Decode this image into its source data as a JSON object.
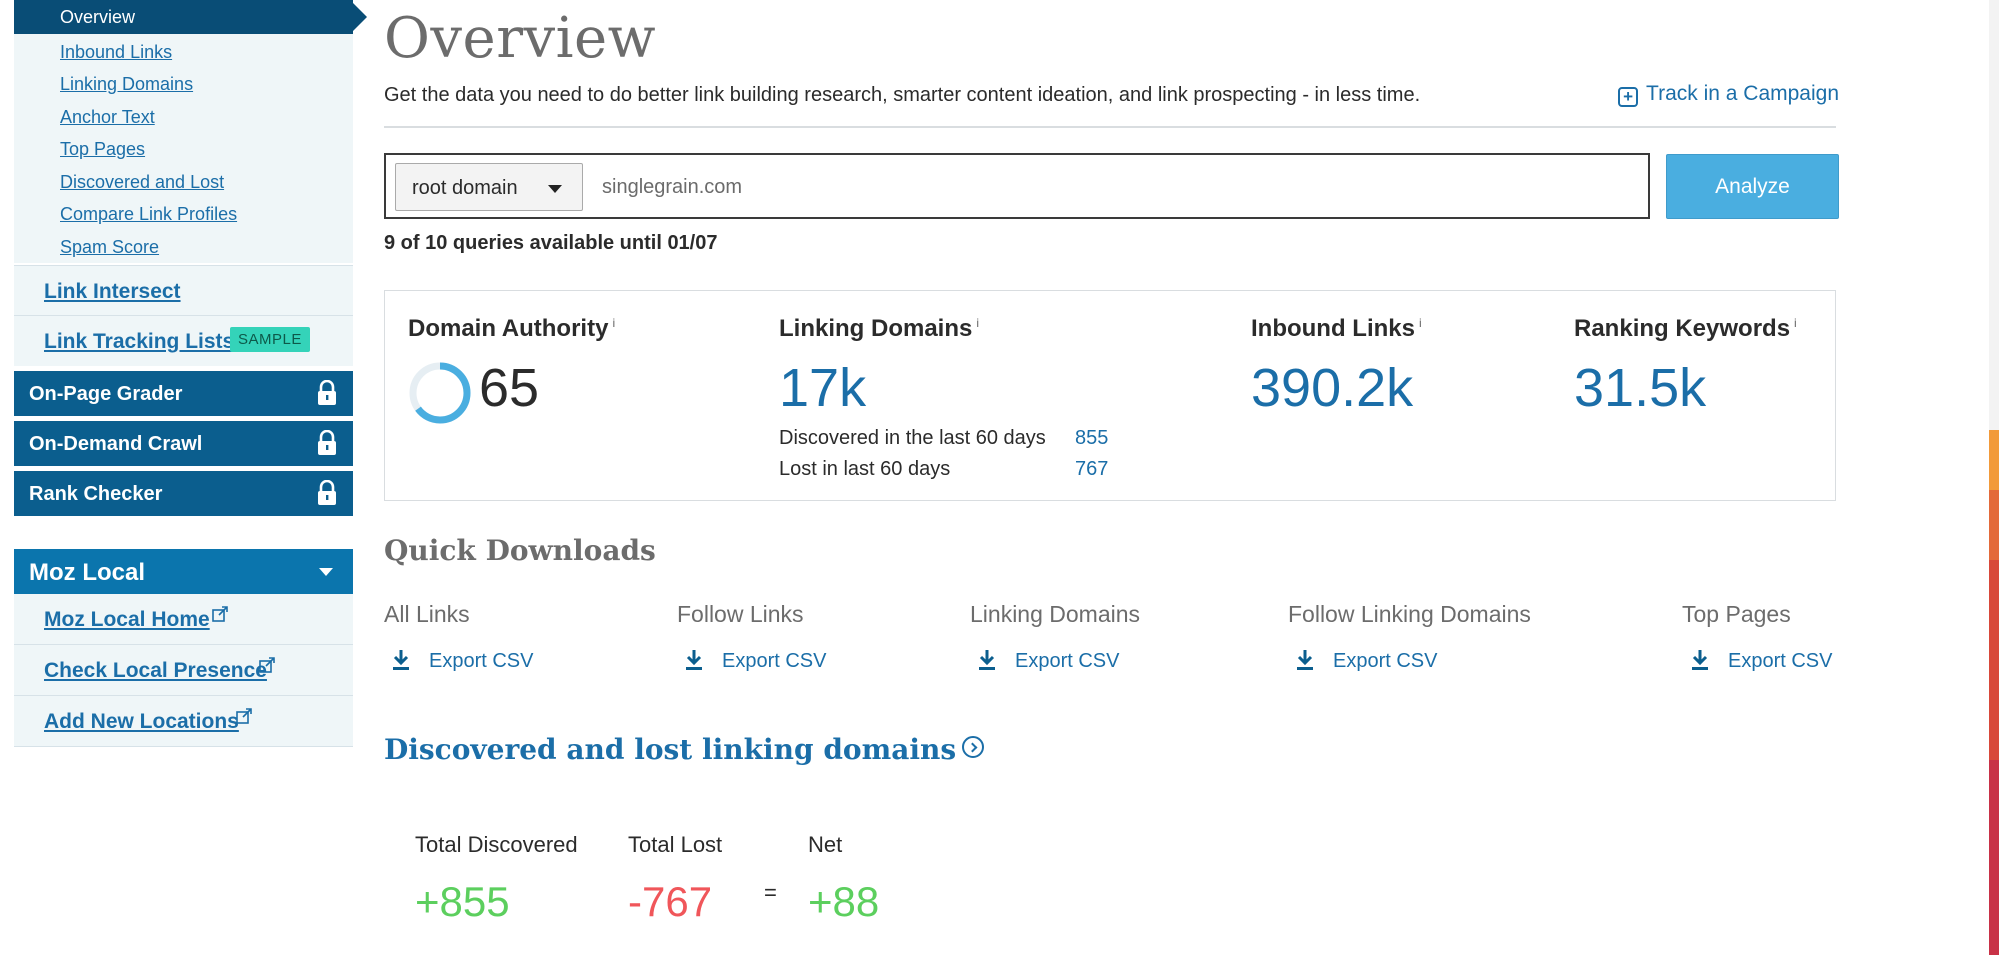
{
  "sidebar": {
    "sub_items": [
      "Overview",
      "Inbound Links",
      "Linking Domains",
      "Anchor Text",
      "Top Pages",
      "Discovered and Lost",
      "Compare Link Profiles",
      "Spam Score"
    ],
    "link_intersect": "Link Intersect",
    "link_tracking": "Link Tracking Lists",
    "sample_badge": "SAMPLE",
    "locked_tools": [
      "On-Page Grader",
      "On-Demand Crawl",
      "Rank Checker"
    ],
    "moz_local": {
      "title": "Moz Local",
      "items": [
        "Moz Local Home",
        "Check Local Presence",
        "Add New Locations"
      ]
    }
  },
  "header": {
    "title": "Overview",
    "intro": "Get the data you need to do better link building research, smarter content ideation, and link prospecting - in less time.",
    "track_link": "Track in a Campaign"
  },
  "search": {
    "scope": "root domain",
    "value": "singlegrain.com",
    "button": "Analyze",
    "queries": "9 of 10 queries available until 01/07"
  },
  "metrics": {
    "info_glyph": "i",
    "domain_authority": {
      "label": "Domain Authority",
      "value": "65",
      "fraction": 0.65
    },
    "linking_domains": {
      "label": "Linking Domains",
      "value": "17k",
      "discovered_label": "Discovered in the last 60 days",
      "discovered": "855",
      "lost_label": "Lost in last 60 days",
      "lost": "767"
    },
    "inbound_links": {
      "label": "Inbound Links",
      "value": "390.2k"
    },
    "ranking_keywords": {
      "label": "Ranking Keywords",
      "value": "31.5k"
    }
  },
  "quick_downloads": {
    "title": "Quick Downloads",
    "export_label": "Export CSV",
    "items": [
      "All Links",
      "Follow Links",
      "Linking Domains",
      "Follow Linking Domains",
      "Top Pages"
    ]
  },
  "discovered_lost": {
    "title": "Discovered and lost linking domains",
    "total_discovered_label": "Total Discovered",
    "total_discovered": "+855",
    "total_lost_label": "Total Lost",
    "total_lost": "-767",
    "equals": "=",
    "net_label": "Net",
    "net": "+88"
  },
  "colors": {
    "nav_dark": "#094d76",
    "accent_blue": "#1b6ea8",
    "button_blue": "#4aaee0",
    "positive": "#5ccf5e",
    "negative": "#f0565a",
    "sample_badge": "#34d3b9"
  }
}
